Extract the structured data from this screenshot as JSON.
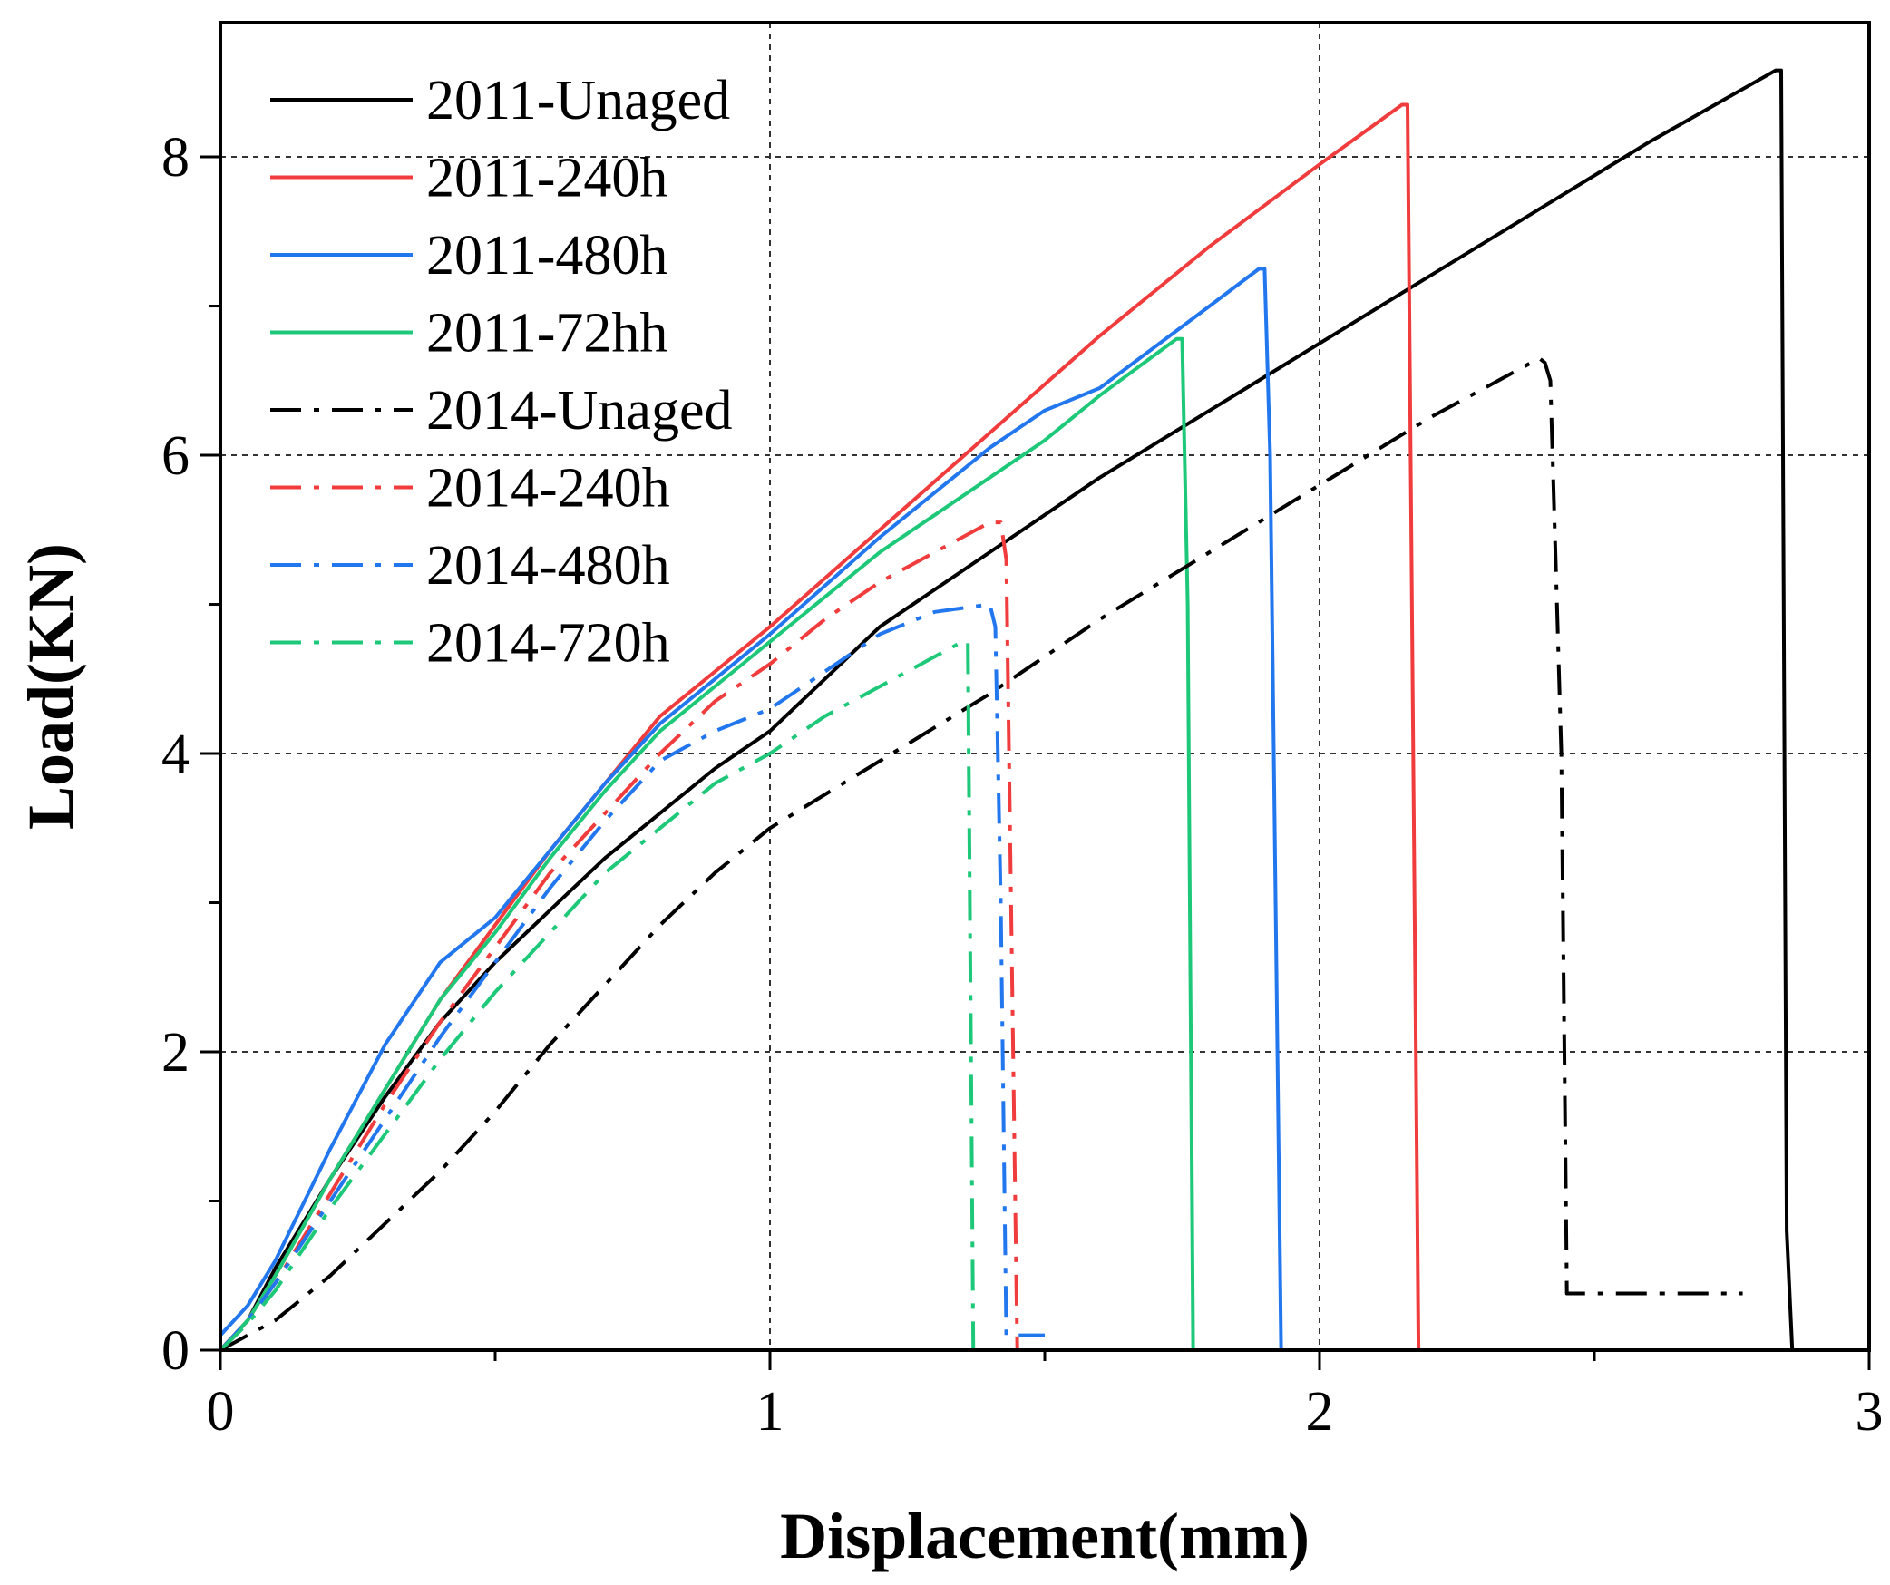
{
  "chart_data": {
    "type": "line",
    "title": "",
    "xlabel": "Displacement(mm)",
    "ylabel": "Load(KN)",
    "xlim": [
      0,
      3
    ],
    "ylim": [
      0,
      8.9
    ],
    "xticks": [
      0,
      1,
      2,
      3
    ],
    "yticks": [
      0,
      2,
      4,
      6,
      8
    ],
    "xtick_labels": [
      "0",
      "1",
      "2",
      "3"
    ],
    "ytick_labels": [
      "0",
      "2",
      "4",
      "6",
      "8"
    ],
    "grid": "dashed, at major ticks",
    "legend_position": "top-left",
    "series": [
      {
        "name": "2011-Unaged",
        "color": "#000000",
        "style": "solid",
        "x": [
          0,
          0.05,
          0.1,
          0.2,
          0.3,
          0.4,
          0.5,
          0.6,
          0.7,
          0.8,
          0.9,
          1.0,
          1.1,
          1.2,
          1.3,
          1.4,
          1.6,
          1.8,
          2.0,
          2.2,
          2.4,
          2.6,
          2.83,
          2.84,
          2.85,
          2.86
        ],
        "y": [
          0,
          0.2,
          0.55,
          1.15,
          1.7,
          2.2,
          2.6,
          2.95,
          3.3,
          3.6,
          3.9,
          4.15,
          4.5,
          4.85,
          5.1,
          5.35,
          5.85,
          6.3,
          6.75,
          7.2,
          7.65,
          8.1,
          8.58,
          8.58,
          0.8,
          0
        ]
      },
      {
        "name": "2011-240h",
        "color": "#f03c3c",
        "style": "solid",
        "x": [
          0,
          0.05,
          0.1,
          0.2,
          0.3,
          0.4,
          0.5,
          0.6,
          0.7,
          0.8,
          0.9,
          1.0,
          1.2,
          1.4,
          1.6,
          1.8,
          2.0,
          2.15,
          2.16,
          2.18,
          2.35
        ],
        "y": [
          0,
          0.2,
          0.5,
          1.15,
          1.75,
          2.35,
          2.85,
          3.35,
          3.8,
          4.25,
          4.55,
          4.85,
          5.5,
          6.15,
          6.8,
          7.4,
          7.95,
          8.35,
          8.35,
          0,
          0
        ]
      },
      {
        "name": "2011-480h",
        "color": "#2277ee",
        "style": "solid",
        "x": [
          0,
          0.05,
          0.1,
          0.2,
          0.3,
          0.4,
          0.5,
          0.6,
          0.7,
          0.8,
          0.9,
          1.0,
          1.2,
          1.4,
          1.5,
          1.6,
          1.8,
          1.89,
          1.9,
          1.91,
          1.93,
          2.15
        ],
        "y": [
          0.1,
          0.3,
          0.6,
          1.35,
          2.05,
          2.6,
          2.9,
          3.35,
          3.8,
          4.2,
          4.5,
          4.8,
          5.45,
          6.05,
          6.3,
          6.45,
          7.0,
          7.25,
          7.25,
          6.0,
          0,
          0
        ]
      },
      {
        "name": "2011-72hh",
        "color": "#1ec879",
        "style": "solid",
        "x": [
          0,
          0.05,
          0.1,
          0.2,
          0.3,
          0.4,
          0.5,
          0.6,
          0.7,
          0.8,
          0.9,
          1.0,
          1.2,
          1.4,
          1.5,
          1.6,
          1.74,
          1.75,
          1.76,
          1.77
        ],
        "y": [
          0,
          0.2,
          0.5,
          1.15,
          1.75,
          2.35,
          2.8,
          3.3,
          3.75,
          4.15,
          4.45,
          4.75,
          5.35,
          5.85,
          6.1,
          6.4,
          6.78,
          6.78,
          5.0,
          0
        ]
      },
      {
        "name": "2014-Unaged",
        "color": "#000000",
        "style": "dashdot",
        "x": [
          0,
          0.1,
          0.2,
          0.3,
          0.4,
          0.5,
          0.6,
          0.7,
          0.8,
          0.9,
          1.0,
          1.2,
          1.4,
          1.6,
          1.8,
          2.0,
          2.2,
          2.4,
          2.41,
          2.42,
          2.44,
          2.45,
          2.77
        ],
        "y": [
          0,
          0.2,
          0.5,
          0.85,
          1.2,
          1.6,
          2.05,
          2.45,
          2.85,
          3.2,
          3.5,
          3.95,
          4.4,
          4.9,
          5.35,
          5.8,
          6.25,
          6.65,
          6.62,
          6.5,
          4.0,
          0.38,
          0.38
        ]
      },
      {
        "name": "2014-240h",
        "color": "#f03c3c",
        "style": "dashdot",
        "x": [
          0,
          0.05,
          0.1,
          0.2,
          0.3,
          0.4,
          0.5,
          0.6,
          0.7,
          0.8,
          0.9,
          1.0,
          1.1,
          1.2,
          1.3,
          1.4,
          1.42,
          1.43,
          1.45
        ],
        "y": [
          0,
          0.2,
          0.45,
          1.05,
          1.65,
          2.2,
          2.7,
          3.2,
          3.6,
          4.0,
          4.35,
          4.6,
          4.9,
          5.15,
          5.35,
          5.55,
          5.55,
          5.3,
          0
        ]
      },
      {
        "name": "2014-480h",
        "color": "#2277ee",
        "style": "dashdot",
        "x": [
          0,
          0.05,
          0.1,
          0.2,
          0.3,
          0.4,
          0.5,
          0.6,
          0.7,
          0.8,
          0.9,
          1.0,
          1.1,
          1.2,
          1.3,
          1.4,
          1.41,
          1.42,
          1.43,
          1.5
        ],
        "y": [
          0,
          0.2,
          0.45,
          1.0,
          1.55,
          2.1,
          2.6,
          3.1,
          3.55,
          3.95,
          4.15,
          4.3,
          4.55,
          4.8,
          4.95,
          5.0,
          4.85,
          3.0,
          0.1,
          0.1
        ]
      },
      {
        "name": "2014-720h",
        "color": "#1ec879",
        "style": "dashdot",
        "x": [
          0,
          0.05,
          0.1,
          0.2,
          0.3,
          0.4,
          0.5,
          0.6,
          0.7,
          0.8,
          0.9,
          1.0,
          1.1,
          1.2,
          1.3,
          1.35,
          1.36,
          1.37
        ],
        "y": [
          0,
          0.18,
          0.4,
          0.95,
          1.45,
          1.95,
          2.4,
          2.8,
          3.2,
          3.5,
          3.8,
          4.0,
          4.25,
          4.45,
          4.65,
          4.75,
          4.75,
          0
        ]
      }
    ]
  }
}
